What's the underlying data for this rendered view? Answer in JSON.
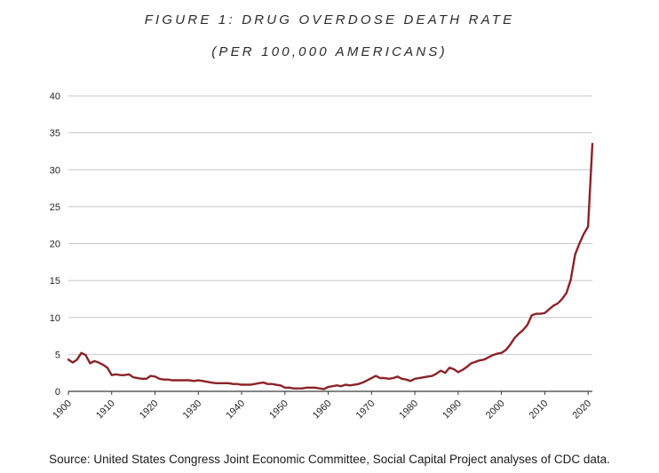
{
  "chart_data": {
    "type": "line",
    "title": "FIGURE 1: DRUG OVERDOSE DEATH RATE",
    "subtitle": "(PER 100,000 AMERICANS)",
    "xlabel": "",
    "ylabel": "",
    "xlim": [
      1900,
      2021
    ],
    "ylim": [
      0,
      40
    ],
    "x_ticks": [
      1900,
      1910,
      1920,
      1930,
      1940,
      1950,
      1960,
      1970,
      1980,
      1990,
      2000,
      2010,
      2020
    ],
    "y_ticks": [
      0,
      5,
      10,
      15,
      20,
      25,
      30,
      35,
      40
    ],
    "grid": "horizontal",
    "line_color": "#8b2328",
    "series": [
      {
        "x": [
          1900,
          1901,
          1902,
          1903,
          1904,
          1905,
          1906,
          1907,
          1908,
          1909,
          1910,
          1911,
          1912,
          1913,
          1914,
          1915,
          1916,
          1917,
          1918,
          1919,
          1920,
          1921,
          1922,
          1923,
          1924,
          1925,
          1926,
          1927,
          1928,
          1929,
          1930,
          1931,
          1932,
          1933,
          1934,
          1935,
          1936,
          1937,
          1938,
          1939,
          1940,
          1941,
          1942,
          1943,
          1944,
          1945,
          1946,
          1947,
          1948,
          1949,
          1950,
          1951,
          1952,
          1953,
          1954,
          1955,
          1956,
          1957,
          1958,
          1959,
          1960,
          1961,
          1962,
          1963,
          1964,
          1965,
          1966,
          1967,
          1968,
          1969,
          1970,
          1971,
          1972,
          1973,
          1974,
          1975,
          1976,
          1977,
          1978,
          1979,
          1980,
          1981,
          1982,
          1983,
          1984,
          1985,
          1986,
          1987,
          1988,
          1989,
          1990,
          1991,
          1992,
          1993,
          1994,
          1995,
          1996,
          1997,
          1998,
          1999,
          2000,
          2001,
          2002,
          2003,
          2004,
          2005,
          2006,
          2007,
          2008,
          2009,
          2010,
          2011,
          2012,
          2013,
          2014,
          2015,
          2016,
          2017,
          2018,
          2019,
          2020,
          2021
        ],
        "values": [
          4.3,
          3.9,
          4.3,
          5.2,
          4.9,
          3.8,
          4.1,
          3.9,
          3.6,
          3.2,
          2.2,
          2.3,
          2.2,
          2.2,
          2.3,
          1.9,
          1.8,
          1.7,
          1.7,
          2.1,
          2.0,
          1.7,
          1.6,
          1.6,
          1.5,
          1.5,
          1.5,
          1.5,
          1.5,
          1.4,
          1.5,
          1.4,
          1.3,
          1.2,
          1.1,
          1.1,
          1.1,
          1.1,
          1.0,
          1.0,
          0.9,
          0.9,
          0.9,
          1.0,
          1.1,
          1.2,
          1.0,
          1.0,
          0.9,
          0.8,
          0.5,
          0.5,
          0.4,
          0.4,
          0.4,
          0.5,
          0.5,
          0.5,
          0.4,
          0.3,
          0.6,
          0.7,
          0.8,
          0.7,
          0.9,
          0.8,
          0.9,
          1.0,
          1.2,
          1.5,
          1.8,
          2.1,
          1.8,
          1.8,
          1.7,
          1.8,
          2.0,
          1.7,
          1.6,
          1.4,
          1.7,
          1.8,
          1.9,
          2.0,
          2.1,
          2.4,
          2.8,
          2.5,
          3.2,
          3.0,
          2.6,
          2.9,
          3.3,
          3.8,
          4.0,
          4.2,
          4.3,
          4.6,
          4.9,
          5.1,
          5.2,
          5.6,
          6.3,
          7.2,
          7.8,
          8.3,
          9.0,
          10.3,
          10.5,
          10.5,
          10.6,
          11.1,
          11.6,
          11.9,
          12.5,
          13.3,
          15.1,
          18.5,
          20.0,
          21.3,
          22.3,
          33.5
        ]
      }
    ]
  },
  "source": "Source: United States Congress Joint Economic Committee, Social Capital Project analyses of CDC data."
}
